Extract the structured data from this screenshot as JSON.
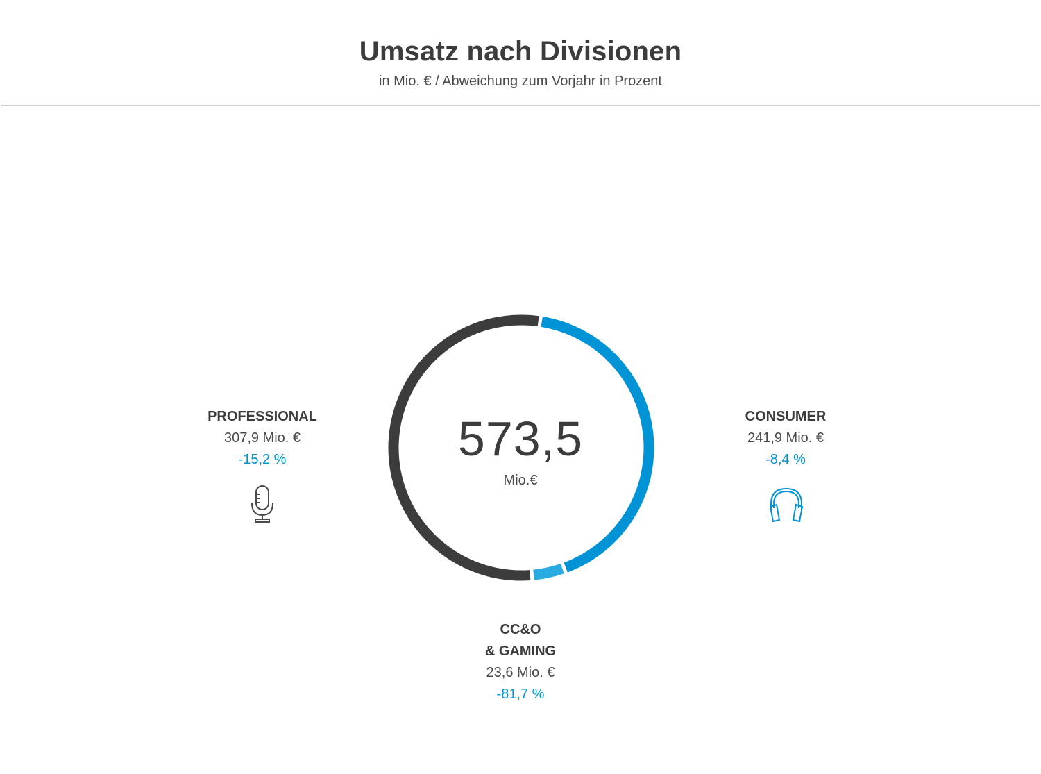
{
  "header": {
    "title": "Umsatz nach Divisionen",
    "subtitle": "in Mio. € / Abweichung zum Vorjahr in Prozent"
  },
  "total": {
    "value": "573,5",
    "unit": "Mio.€"
  },
  "divisions": {
    "professional": {
      "name": "PROFESSIONAL",
      "value_label": "307,9 Mio. €",
      "change_label": "-15,2 %",
      "icon": "microphone-icon"
    },
    "consumer": {
      "name": "CONSUMER",
      "value_label": "241,9 Mio. €",
      "change_label": "-8,4 %",
      "icon": "headphones-icon"
    },
    "ccog": {
      "name_line1": "CC&O",
      "name_line2": "& GAMING",
      "value_label": "23,6 Mio. €",
      "change_label": "-81,7 %"
    }
  },
  "colors": {
    "professional": "#3c3c3c",
    "consumer": "#0093d5",
    "ccog": "#29abe2",
    "change_text": "#0093d5",
    "text_dark": "#3c3c3c"
  },
  "chart_data": {
    "type": "pie",
    "style": "donut",
    "categories": [
      "Consumer",
      "CC&O & Gaming",
      "Professional"
    ],
    "values": [
      241.9,
      23.6,
      307.9
    ],
    "changes_percent": [
      -8.4,
      -81.7,
      -15.2
    ],
    "total": 573.5,
    "unit": "Mio. €",
    "start": "top, clockwise: Consumer, CC&O & Gaming, Professional"
  }
}
